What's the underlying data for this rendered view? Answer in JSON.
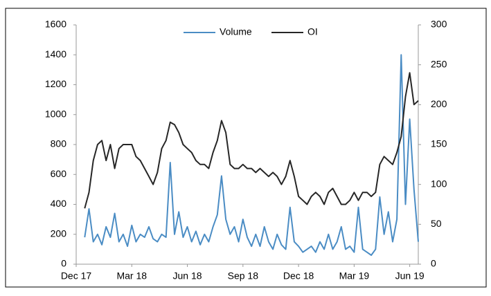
{
  "chart_data": {
    "type": "line",
    "categories": [
      "Dec 17",
      null,
      null,
      null,
      null,
      null,
      null,
      null,
      null,
      null,
      null,
      null,
      null,
      "Mar 18",
      null,
      null,
      null,
      null,
      null,
      null,
      null,
      null,
      null,
      null,
      null,
      null,
      "Jun 18",
      null,
      null,
      null,
      null,
      null,
      null,
      null,
      null,
      null,
      null,
      null,
      null,
      "Sep 18",
      null,
      null,
      null,
      null,
      null,
      null,
      null,
      null,
      null,
      null,
      null,
      null,
      "Dec 18",
      null,
      null,
      null,
      null,
      null,
      null,
      null,
      null,
      null,
      null,
      null,
      null,
      "Mar 19",
      null,
      null,
      null,
      null,
      null,
      null,
      null,
      null,
      null,
      null,
      null,
      null,
      "Jun 19",
      null,
      null
    ],
    "series": [
      {
        "name": "Volume",
        "color": "#4a8cc4",
        "axis": "y",
        "values": [
          null,
          null,
          180,
          370,
          150,
          200,
          130,
          250,
          180,
          340,
          150,
          200,
          120,
          260,
          150,
          200,
          180,
          250,
          170,
          150,
          200,
          180,
          680,
          200,
          350,
          180,
          250,
          150,
          220,
          130,
          200,
          150,
          250,
          330,
          590,
          300,
          200,
          250,
          150,
          300,
          180,
          120,
          200,
          120,
          250,
          150,
          100,
          200,
          130,
          100,
          380,
          150,
          120,
          80,
          100,
          120,
          80,
          150,
          100,
          200,
          100,
          150,
          250,
          100,
          120,
          80,
          380,
          100,
          80,
          60,
          100,
          450,
          200,
          350,
          150,
          300,
          1400,
          400,
          970,
          500,
          150
        ]
      },
      {
        "name": "OI",
        "color": "#262626",
        "axis": "y2",
        "values": [
          null,
          null,
          70,
          90,
          130,
          150,
          155,
          130,
          150,
          120,
          145,
          150,
          150,
          150,
          135,
          130,
          120,
          110,
          100,
          115,
          145,
          155,
          178,
          175,
          165,
          150,
          145,
          140,
          130,
          125,
          125,
          120,
          140,
          155,
          180,
          165,
          125,
          120,
          120,
          125,
          120,
          120,
          115,
          120,
          115,
          110,
          115,
          110,
          100,
          110,
          130,
          110,
          85,
          80,
          75,
          85,
          90,
          85,
          75,
          90,
          95,
          85,
          75,
          75,
          80,
          90,
          80,
          90,
          90,
          85,
          90,
          125,
          135,
          130,
          125,
          140,
          160,
          210,
          240,
          200,
          205
        ]
      }
    ],
    "ylim": [
      0,
      1600
    ],
    "yticks": [
      0,
      200,
      400,
      600,
      800,
      1000,
      1200,
      1400,
      1600
    ],
    "y2lim": [
      0,
      300
    ],
    "y2ticks": [
      0,
      50,
      100,
      150,
      200,
      250,
      300
    ],
    "legend": "top"
  }
}
